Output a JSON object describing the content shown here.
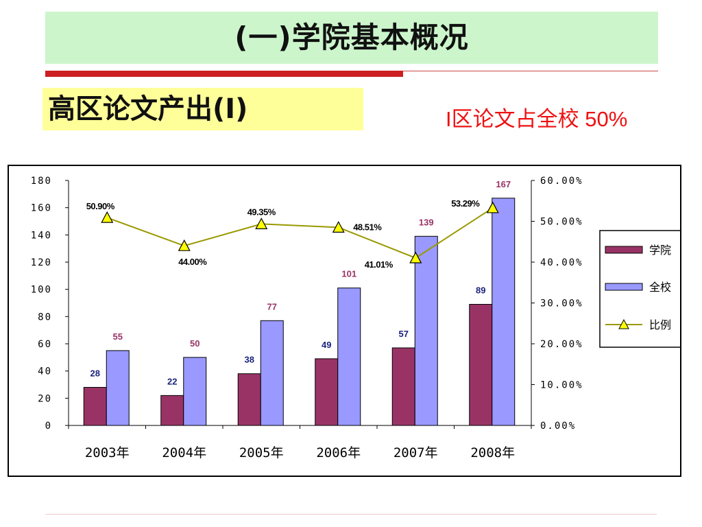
{
  "slide": {
    "title": "(一)学院基本概况",
    "subtitle": "高区论文产出(I)",
    "note": "I区论文占全校 50%"
  },
  "colors": {
    "title_bg": "#ccf5cc",
    "subtitle_bg": "#ffff99",
    "red_rule": "#cc1f1f",
    "note": "#ee1111",
    "college_bar": "#993366",
    "school_bar": "#9999ff",
    "ratio_line": "#999900",
    "ratio_marker": "#ffff00",
    "college_label": "#1a237e",
    "school_label": "#993366"
  },
  "chart_data": {
    "type": "bar",
    "categories": [
      "2003年",
      "2004年",
      "2005年",
      "2006年",
      "2007年",
      "2008年"
    ],
    "series": [
      {
        "name": "学院",
        "type": "bar",
        "axis": "left",
        "values": [
          28,
          22,
          38,
          49,
          57,
          89
        ]
      },
      {
        "name": "全校",
        "type": "bar",
        "axis": "left",
        "values": [
          55,
          50,
          77,
          101,
          139,
          167
        ]
      },
      {
        "name": "比例",
        "type": "line",
        "axis": "right",
        "values": [
          50.9,
          44.0,
          49.35,
          48.51,
          41.01,
          53.29
        ],
        "labels": [
          "50.90%",
          "44.00%",
          "49.35%",
          "48.51%",
          "41.01%",
          "53.29%"
        ]
      }
    ],
    "y_left": {
      "range": [
        0,
        180
      ],
      "ticks": [
        "0",
        "20",
        "40",
        "60",
        "80",
        "100",
        "120",
        "140",
        "160",
        "180"
      ]
    },
    "y_right": {
      "range": [
        0,
        60
      ],
      "ticks": [
        "0.00%",
        "10.00%",
        "20.00%",
        "30.00%",
        "40.00%",
        "50.00%",
        "60.00%"
      ]
    },
    "legend": {
      "position": "right",
      "entries": [
        "学院",
        "全校",
        "比例"
      ]
    },
    "grid": false
  }
}
